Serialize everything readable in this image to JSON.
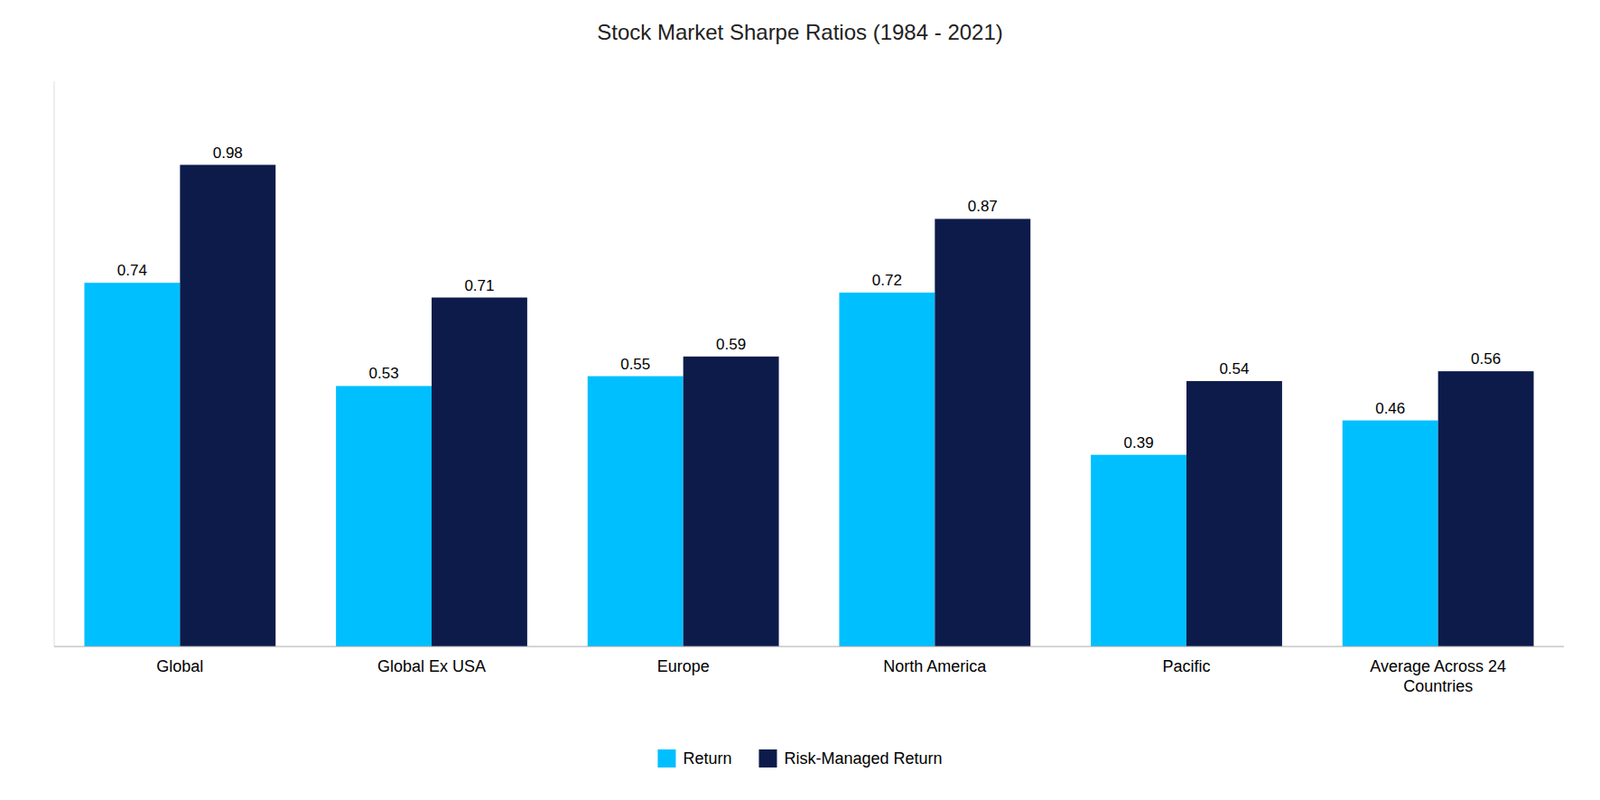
{
  "chart_data": {
    "type": "bar",
    "title": "Stock Market Sharpe Ratios (1984 - 2021)",
    "categories": [
      "Global",
      "Global Ex USA",
      "Europe",
      "North America",
      "Pacific",
      "Average Across 24\nCountries"
    ],
    "series": [
      {
        "name": "Return",
        "color": "#00BFFF",
        "values": [
          0.74,
          0.53,
          0.55,
          0.72,
          0.39,
          0.46
        ]
      },
      {
        "name": "Risk-Managed Return",
        "color": "#0D1B4B",
        "values": [
          0.98,
          0.71,
          0.59,
          0.87,
          0.54,
          0.56
        ]
      }
    ],
    "ylim": [
      0,
      1.15
    ],
    "grid": false,
    "legend": "bottom",
    "data_labels": true,
    "tick_labels": "x"
  }
}
